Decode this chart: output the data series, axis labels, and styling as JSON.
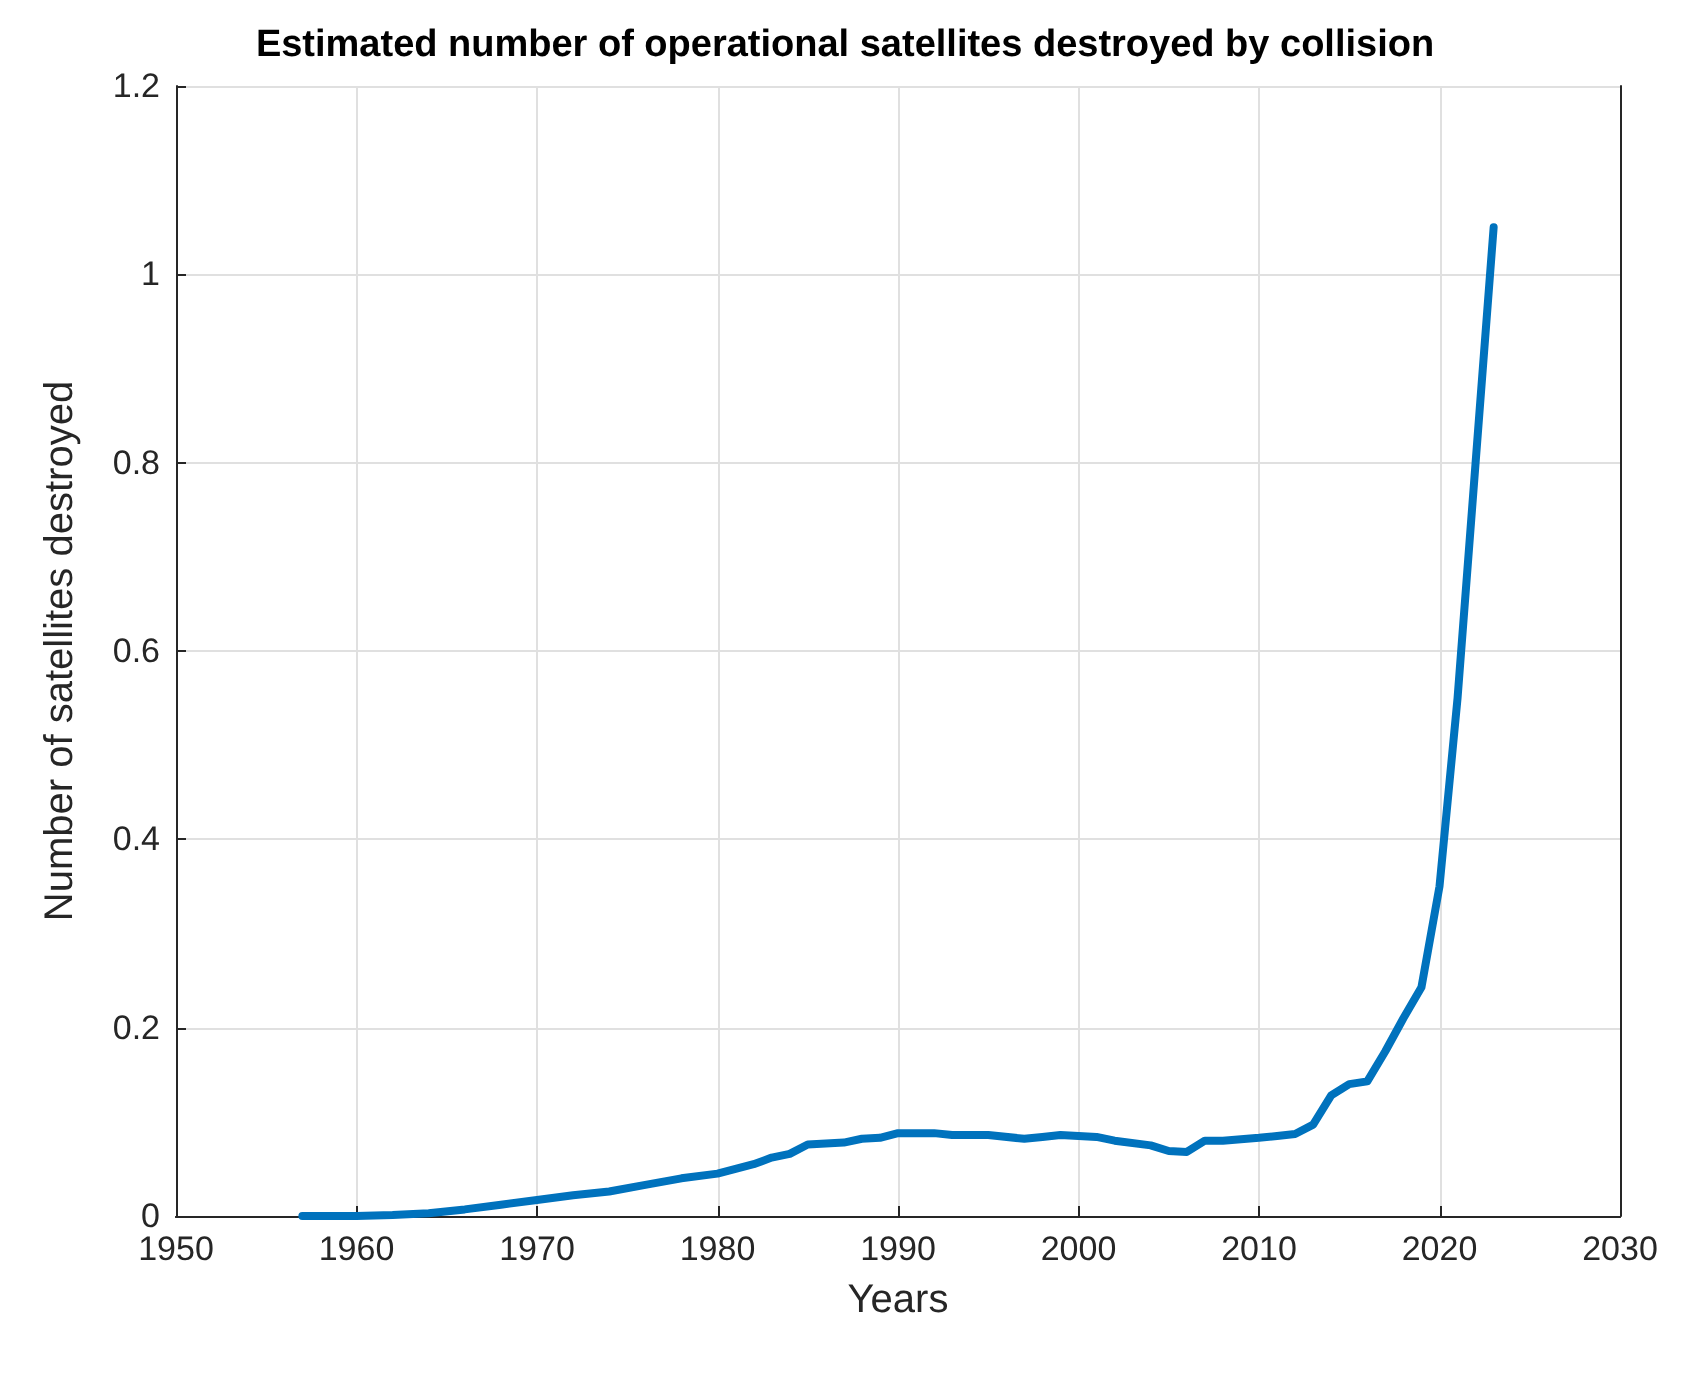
{
  "chart_data": {
    "type": "line",
    "title": "Estimated number of operational satellites destroyed by collision",
    "xlabel": "Years",
    "ylabel": "Number of satellites destroyed",
    "x": [
      1957,
      1958,
      1960,
      1962,
      1964,
      1966,
      1968,
      1970,
      1972,
      1974,
      1976,
      1978,
      1980,
      1981,
      1982,
      1983,
      1984,
      1985,
      1987,
      1988,
      1989,
      1990,
      1992,
      1993,
      1995,
      1997,
      1998,
      1999,
      2000,
      2001,
      2002,
      2004,
      2005,
      2006,
      2007,
      2008,
      2010,
      2011,
      2012,
      2013,
      2014,
      2015,
      2016,
      2017,
      2018,
      2019,
      2020,
      2021,
      2022,
      2023
    ],
    "series": [
      {
        "color": "#0072bd",
        "values": [
          0,
          0,
          0,
          0.001,
          0.003,
          0.007,
          0.012,
          0.017,
          0.022,
          0.026,
          0.033,
          0.04,
          0.045,
          0.05,
          0.055,
          0.062,
          0.066,
          0.076,
          0.078,
          0.082,
          0.083,
          0.088,
          0.088,
          0.086,
          0.086,
          0.082,
          0.084,
          0.086,
          0.085,
          0.084,
          0.08,
          0.075,
          0.069,
          0.068,
          0.08,
          0.08,
          0.083,
          0.085,
          0.087,
          0.097,
          0.128,
          0.14,
          0.143,
          0.175,
          0.21,
          0.243,
          0.35,
          0.55,
          0.8,
          1.05
        ]
      }
    ],
    "xlim": [
      1950,
      2030
    ],
    "xticks": [
      1950,
      1960,
      1970,
      1980,
      1990,
      2000,
      2010,
      2020,
      2030
    ],
    "ylim": [
      0,
      1.2
    ],
    "yticks": [
      0,
      0.2,
      0.4,
      0.6,
      0.8,
      1,
      1.2
    ],
    "grid": true,
    "line_style": "solid"
  }
}
